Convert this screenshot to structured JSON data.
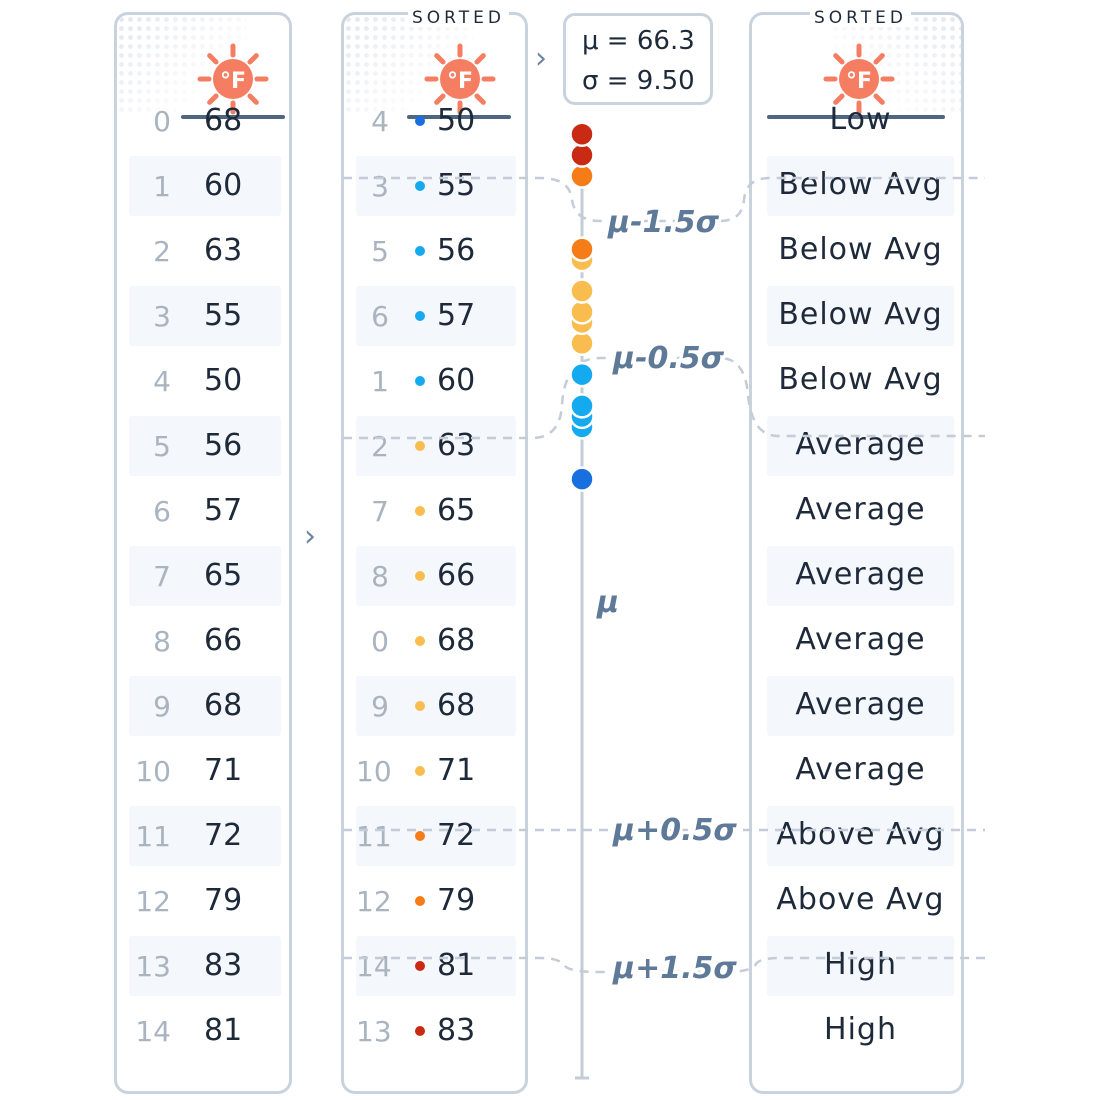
{
  "header": {
    "sorted_label_middle": "SORTED",
    "sorted_label_right": "SORTED",
    "unit_glyph": "°F",
    "icon": "sun-fahrenheit-icon"
  },
  "stats": {
    "mean": "μ = 66.3",
    "sd": "σ = 9.50"
  },
  "original": [
    {
      "i": "0",
      "v": "68"
    },
    {
      "i": "1",
      "v": "60"
    },
    {
      "i": "2",
      "v": "63"
    },
    {
      "i": "3",
      "v": "55"
    },
    {
      "i": "4",
      "v": "50"
    },
    {
      "i": "5",
      "v": "56"
    },
    {
      "i": "6",
      "v": "57"
    },
    {
      "i": "7",
      "v": "65"
    },
    {
      "i": "8",
      "v": "66"
    },
    {
      "i": "9",
      "v": "68"
    },
    {
      "i": "10",
      "v": "71"
    },
    {
      "i": "11",
      "v": "72"
    },
    {
      "i": "12",
      "v": "79"
    },
    {
      "i": "13",
      "v": "83"
    },
    {
      "i": "14",
      "v": "81"
    }
  ],
  "sorted": [
    {
      "i": "4",
      "v": "50",
      "band": "low"
    },
    {
      "i": "3",
      "v": "55",
      "band": "below"
    },
    {
      "i": "5",
      "v": "56",
      "band": "below"
    },
    {
      "i": "6",
      "v": "57",
      "band": "below"
    },
    {
      "i": "1",
      "v": "60",
      "band": "below"
    },
    {
      "i": "2",
      "v": "63",
      "band": "avg"
    },
    {
      "i": "7",
      "v": "65",
      "band": "avg"
    },
    {
      "i": "8",
      "v": "66",
      "band": "avg"
    },
    {
      "i": "0",
      "v": "68",
      "band": "avg"
    },
    {
      "i": "9",
      "v": "68",
      "band": "avg"
    },
    {
      "i": "10",
      "v": "71",
      "band": "avg"
    },
    {
      "i": "11",
      "v": "72",
      "band": "above"
    },
    {
      "i": "12",
      "v": "79",
      "band": "above"
    },
    {
      "i": "14",
      "v": "81",
      "band": "high"
    },
    {
      "i": "13",
      "v": "83",
      "band": "high"
    }
  ],
  "categories": [
    "Low",
    "Below Avg",
    "Below Avg",
    "Below Avg",
    "Below Avg",
    "Average",
    "Average",
    "Average",
    "Average",
    "Average",
    "Average",
    "Above Avg",
    "Above Avg",
    "High",
    "High"
  ],
  "thresholds": {
    "minus_1_5": "μ-1.5σ",
    "minus_0_5": "μ-0.5σ",
    "mu": "μ",
    "plus_0_5": "μ+0.5σ",
    "plus_1_5": "μ+1.5σ"
  },
  "number_line": {
    "mu": 66.3,
    "sigma": 9.5,
    "values": [
      50,
      55,
      56,
      57,
      60,
      63,
      65,
      66,
      68,
      68,
      71,
      72,
      79,
      81,
      83
    ]
  },
  "colors": {
    "low": "#1a6fe0",
    "below": "#15aaf0",
    "avg": "#f8bd4e",
    "above": "#f57c17",
    "high": "#c82a14",
    "border": "#c9d3de",
    "header_line": "#4f6680",
    "threshold_text": "#5f7a98",
    "sun": "#f47d62"
  }
}
